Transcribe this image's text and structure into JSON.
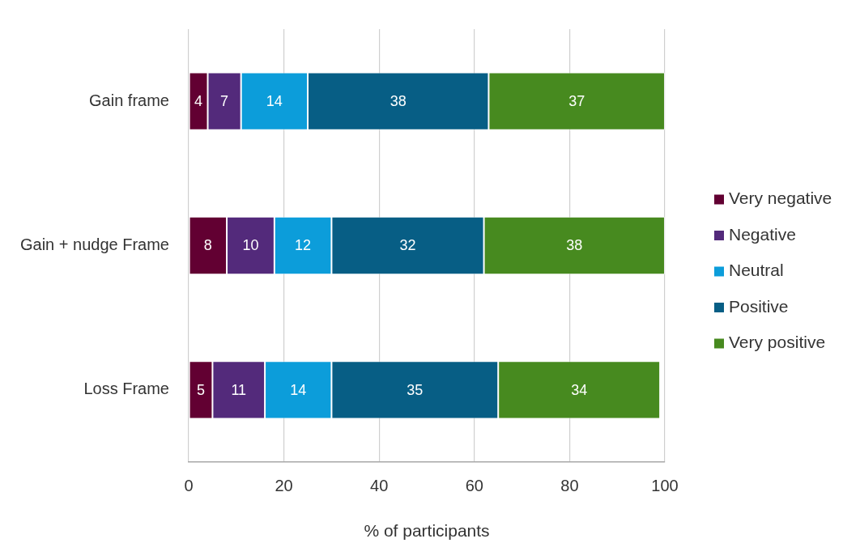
{
  "chart_data": {
    "type": "bar",
    "orientation": "horizontal",
    "stacked": true,
    "categories": [
      "Gain frame",
      "Gain + nudge Frame",
      "Loss Frame"
    ],
    "series": [
      {
        "name": "Very negative",
        "color": "#620032",
        "values": [
          4,
          8,
          5
        ]
      },
      {
        "name": "Negative",
        "color": "#532a7b",
        "values": [
          7,
          10,
          11
        ]
      },
      {
        "name": "Neutral",
        "color": "#0c9dda",
        "values": [
          14,
          12,
          14
        ]
      },
      {
        "name": "Positive",
        "color": "#075e85",
        "values": [
          38,
          32,
          35
        ]
      },
      {
        "name": "Very positive",
        "color": "#478a1f",
        "values": [
          37,
          38,
          34
        ]
      }
    ],
    "xlabel": "% of participants",
    "xlim": [
      0,
      100
    ],
    "xticks": [
      0,
      20,
      40,
      60,
      80,
      100
    ],
    "grid": "x",
    "legend": "right",
    "data_labels": true
  }
}
